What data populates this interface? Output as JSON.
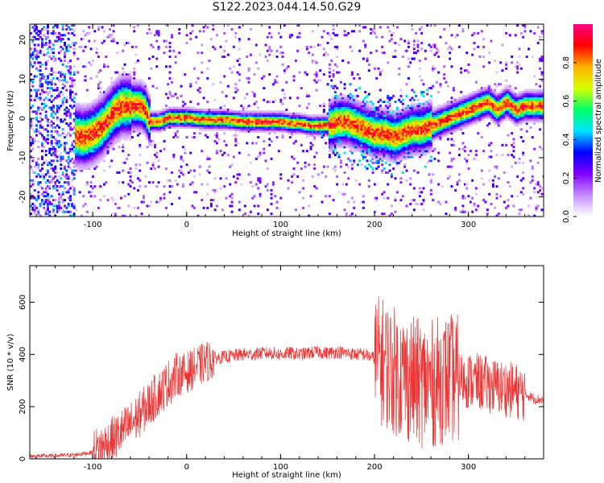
{
  "title": "S122.2023.044.14.50.G29",
  "chart_data": [
    {
      "type": "heatmap",
      "xlabel": "Height of straight line (km)",
      "ylabel": "Frequency (Hz)",
      "xlim": [
        -167,
        380
      ],
      "ylim": [
        -25,
        24
      ],
      "xticks": [
        -100,
        0,
        100,
        200,
        300
      ],
      "yticks": [
        -20,
        -10,
        0,
        10,
        20
      ],
      "ridge": {
        "x": [
          -167,
          -130,
          -110,
          -100,
          -90,
          -80,
          -70,
          -60,
          -50,
          -45,
          -40,
          -30,
          -20,
          -10,
          0,
          20,
          40,
          60,
          80,
          100,
          110,
          120,
          130,
          140,
          150,
          160,
          170,
          180,
          190,
          200,
          210,
          220,
          230,
          240,
          250,
          260,
          270,
          280,
          290,
          300,
          310,
          320,
          330,
          340,
          350,
          360,
          370,
          380
        ],
        "y": [
          -2,
          -4,
          -5,
          -4,
          -2,
          1,
          3,
          3,
          3,
          2,
          -1,
          -1,
          0,
          0,
          0,
          -0.5,
          -0.5,
          -1,
          -1,
          -1,
          -1.5,
          -1.5,
          -2,
          -2,
          -2,
          -1,
          -1,
          -2,
          -3,
          -4,
          -4,
          -5,
          -4,
          -3,
          -3,
          -2,
          -1,
          0,
          1,
          2,
          3,
          4,
          2,
          4,
          2,
          3,
          3,
          3
        ]
      },
      "colorbar": {
        "label": "Normalized spectral amplitude",
        "range": [
          0,
          1
        ],
        "ticks": [
          0.0,
          0.2,
          0.4,
          0.6,
          0.8
        ],
        "colors": [
          "#ffffff",
          "#c58dff",
          "#8000ff",
          "#0000ff",
          "#00e5ff",
          "#00ff66",
          "#d8ff00",
          "#ffb000",
          "#ff0000",
          "#ff0088"
        ]
      }
    },
    {
      "type": "line",
      "xlabel": "Height of straight line (km)",
      "ylabel": "SNR (10 * v/v)",
      "xlim": [
        -167,
        380
      ],
      "ylim": [
        0,
        740
      ],
      "xticks": [
        -100,
        0,
        100,
        200,
        300
      ],
      "yticks": [
        0,
        200,
        400,
        600
      ],
      "color": "#ee3333",
      "series": [
        {
          "x": [
            -167,
            -140,
            -120,
            -100,
            -90,
            -80,
            -70,
            -60,
            -50,
            -40,
            -30,
            -20,
            -10,
            0,
            10,
            20,
            30,
            40,
            50,
            60,
            70,
            80,
            90,
            100,
            110,
            120,
            130,
            140,
            150,
            160,
            170,
            180,
            190,
            200,
            210,
            220,
            230,
            240,
            250,
            260,
            270,
            280,
            290,
            300,
            310,
            320,
            330,
            340,
            350,
            360,
            370,
            380
          ],
          "y": [
            10,
            12,
            15,
            25,
            45,
            70,
            100,
            130,
            170,
            210,
            250,
            290,
            320,
            330,
            350,
            370,
            385,
            390,
            395,
            400,
            400,
            405,
            405,
            400,
            405,
            400,
            405,
            410,
            405,
            410,
            405,
            400,
            400,
            385,
            370,
            340,
            320,
            300,
            290,
            285,
            300,
            310,
            305,
            300,
            295,
            285,
            275,
            270,
            260,
            250,
            230,
            225
          ]
        }
      ]
    }
  ]
}
